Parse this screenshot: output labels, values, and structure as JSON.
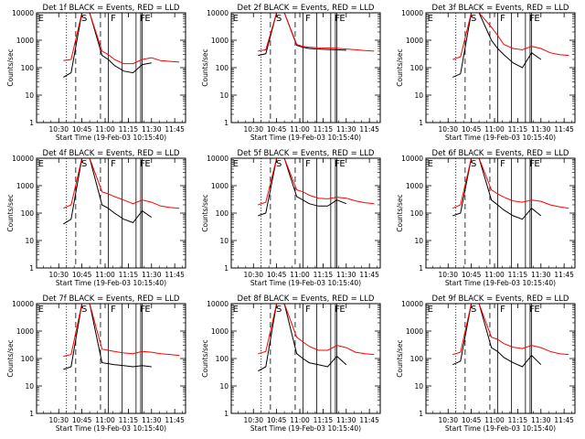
{
  "figure": {
    "series_colors": {
      "events": "#000000",
      "lld": "#ff0000"
    },
    "flag_labels": [
      "E",
      "S",
      "F",
      "F",
      "E"
    ]
  },
  "chart_data": [
    {
      "type": "line",
      "title": "Det 1f BLACK = Events, RED = LLD",
      "xlabel": "Start Time (19-Feb-03 10:15:40)",
      "ylabel": "Counts/sec",
      "x_ticks": [
        "10:30",
        "10:45",
        "11:00",
        "11:15",
        "11:30",
        "11:45"
      ],
      "y_ticks": [
        "1",
        "10",
        "100",
        "1000",
        "10000"
      ],
      "y_scale": "log",
      "ylim": [
        1,
        10000
      ],
      "xlim": [
        "10:15:40",
        "11:52:00"
      ],
      "x": [
        "10:33",
        "10:38",
        "10:45",
        "10:50",
        "10:58",
        "11:02",
        "11:06",
        "11:12",
        "11:18",
        "11:24",
        "11:30",
        "11:36",
        "11:42",
        "11:48"
      ],
      "series": [
        {
          "name": "Events",
          "values": [
            45,
            65,
            10000,
            10000,
            280,
            200,
            120,
            75,
            65,
            130,
            150,
            null,
            null,
            null
          ]
        },
        {
          "name": "LLD",
          "values": [
            180,
            200,
            10000,
            10000,
            400,
            300,
            200,
            140,
            140,
            200,
            230,
            180,
            170,
            160
          ]
        }
      ]
    },
    {
      "type": "line",
      "title": "Det 2f BLACK = Events, RED = LLD",
      "xlabel": "Start Time (19-Feb-03 10:15:40)",
      "ylabel": "Counts/sec",
      "x_ticks": [
        "10:30",
        "10:45",
        "11:00",
        "11:15",
        "11:30",
        "11:45"
      ],
      "y_ticks": [
        "1",
        "10",
        "100",
        "1000",
        "10000"
      ],
      "y_scale": "log",
      "ylim": [
        1,
        10000
      ],
      "xlim": [
        "10:15:40",
        "11:52:00"
      ],
      "x": [
        "10:33",
        "10:38",
        "10:45",
        "10:50",
        "10:58",
        "11:02",
        "11:06",
        "11:12",
        "11:18",
        "11:24",
        "11:30",
        "11:36",
        "11:42",
        "11:48"
      ],
      "series": [
        {
          "name": "Events",
          "values": [
            280,
            320,
            10000,
            10000,
            650,
            550,
            500,
            480,
            460,
            450,
            430,
            null,
            null,
            null
          ]
        },
        {
          "name": "LLD",
          "values": [
            400,
            450,
            10000,
            10000,
            700,
            600,
            560,
            530,
            520,
            510,
            480,
            450,
            420,
            400
          ]
        }
      ]
    },
    {
      "type": "line",
      "title": "Det 3f BLACK = Events, RED = LLD",
      "xlabel": "Start Time (19-Feb-03 10:15:40)",
      "ylabel": "Counts/sec",
      "x_ticks": [
        "10:30",
        "10:45",
        "11:00",
        "11:15",
        "11:30",
        "11:45"
      ],
      "y_ticks": [
        "1",
        "10",
        "100",
        "1000",
        "10000"
      ],
      "y_scale": "log",
      "ylim": [
        1,
        10000
      ],
      "xlim": [
        "10:15:40",
        "11:52:00"
      ],
      "x": [
        "10:33",
        "10:38",
        "10:45",
        "10:50",
        "10:58",
        "11:02",
        "11:06",
        "11:12",
        "11:18",
        "11:24",
        "11:30",
        "11:36",
        "11:42",
        "11:48"
      ],
      "series": [
        {
          "name": "Events",
          "values": [
            45,
            60,
            10000,
            10000,
            1000,
            500,
            300,
            150,
            100,
            350,
            200,
            null,
            null,
            null
          ]
        },
        {
          "name": "LLD",
          "values": [
            200,
            250,
            10000,
            10000,
            3000,
            1500,
            700,
            500,
            450,
            600,
            500,
            350,
            300,
            280
          ]
        }
      ]
    },
    {
      "type": "line",
      "title": "Det 4f BLACK = Events, RED = LLD",
      "xlabel": "Start Time (19-Feb-03 10:15:40)",
      "ylabel": "Counts/sec",
      "x_ticks": [
        "10:30",
        "10:45",
        "11:00",
        "11:15",
        "11:30",
        "11:45"
      ],
      "y_ticks": [
        "1",
        "10",
        "100",
        "1000",
        "10000"
      ],
      "y_scale": "log",
      "ylim": [
        1,
        10000
      ],
      "xlim": [
        "10:15:40",
        "11:52:00"
      ],
      "x": [
        "10:33",
        "10:38",
        "10:45",
        "10:50",
        "10:58",
        "11:02",
        "11:06",
        "11:12",
        "11:18",
        "11:24",
        "11:30",
        "11:36",
        "11:42",
        "11:48"
      ],
      "series": [
        {
          "name": "Events",
          "values": [
            40,
            60,
            10000,
            10000,
            200,
            150,
            100,
            60,
            45,
            120,
            70,
            null,
            null,
            null
          ]
        },
        {
          "name": "LLD",
          "values": [
            150,
            200,
            10000,
            10000,
            600,
            500,
            400,
            300,
            220,
            300,
            250,
            180,
            160,
            150
          ]
        }
      ]
    },
    {
      "type": "line",
      "title": "Det 5f BLACK = Events, RED = LLD",
      "xlabel": "Start Time (19-Feb-03 10:15:40)",
      "ylabel": "Counts/sec",
      "x_ticks": [
        "10:30",
        "10:45",
        "11:00",
        "11:15",
        "11:30",
        "11:45"
      ],
      "y_ticks": [
        "1",
        "10",
        "100",
        "1000",
        "10000"
      ],
      "y_scale": "log",
      "ylim": [
        1,
        10000
      ],
      "xlim": [
        "10:15:40",
        "11:52:00"
      ],
      "x": [
        "10:33",
        "10:38",
        "10:45",
        "10:50",
        "10:58",
        "11:02",
        "11:06",
        "11:12",
        "11:18",
        "11:24",
        "11:30",
        "11:36",
        "11:42",
        "11:48"
      ],
      "series": [
        {
          "name": "Events",
          "values": [
            80,
            100,
            10000,
            10000,
            400,
            300,
            220,
            180,
            180,
            300,
            220,
            null,
            null,
            null
          ]
        },
        {
          "name": "LLD",
          "values": [
            200,
            250,
            10000,
            10000,
            700,
            600,
            450,
            350,
            330,
            380,
            350,
            280,
            240,
            220
          ]
        }
      ]
    },
    {
      "type": "line",
      "title": "Det 6f BLACK = Events, RED = LLD",
      "xlabel": "Start Time (19-Feb-03 10:15:40)",
      "ylabel": "Counts/sec",
      "x_ticks": [
        "10:30",
        "10:45",
        "11:00",
        "11:15",
        "11:30",
        "11:45"
      ],
      "y_ticks": [
        "1",
        "10",
        "100",
        "1000",
        "10000"
      ],
      "y_scale": "log",
      "ylim": [
        1,
        10000
      ],
      "xlim": [
        "10:15:40",
        "11:52:00"
      ],
      "x": [
        "10:33",
        "10:38",
        "10:45",
        "10:50",
        "10:58",
        "11:02",
        "11:06",
        "11:12",
        "11:18",
        "11:24",
        "11:30",
        "11:36",
        "11:42",
        "11:48"
      ],
      "series": [
        {
          "name": "Events",
          "values": [
            80,
            100,
            10000,
            10000,
            300,
            200,
            130,
            80,
            60,
            150,
            80,
            null,
            null,
            null
          ]
        },
        {
          "name": "LLD",
          "values": [
            150,
            200,
            10000,
            10000,
            700,
            500,
            380,
            280,
            250,
            300,
            270,
            200,
            170,
            150
          ]
        }
      ]
    },
    {
      "type": "line",
      "title": "Det 7f BLACK = Events, RED = LLD",
      "xlabel": "Start Time (19-Feb-03 10:15:40)",
      "ylabel": "Counts/sec",
      "x_ticks": [
        "10:30",
        "10:45",
        "11:00",
        "11:15",
        "11:30",
        "11:45"
      ],
      "y_ticks": [
        "1",
        "10",
        "100",
        "1000",
        "10000"
      ],
      "y_scale": "log",
      "ylim": [
        1,
        10000
      ],
      "xlim": [
        "10:15:40",
        "11:52:00"
      ],
      "x": [
        "10:33",
        "10:38",
        "10:45",
        "10:50",
        "10:58",
        "11:02",
        "11:06",
        "11:12",
        "11:18",
        "11:24",
        "11:30",
        "11:36",
        "11:42",
        "11:48"
      ],
      "series": [
        {
          "name": "Events",
          "values": [
            40,
            50,
            10000,
            10000,
            70,
            65,
            60,
            55,
            50,
            55,
            50,
            null,
            null,
            null
          ]
        },
        {
          "name": "LLD",
          "values": [
            120,
            140,
            10000,
            10000,
            220,
            200,
            180,
            160,
            150,
            180,
            170,
            150,
            140,
            130
          ]
        }
      ]
    },
    {
      "type": "line",
      "title": "Det 8f BLACK = Events, RED = LLD",
      "xlabel": "Start Time (19-Feb-03 10:15:40)",
      "ylabel": "Counts/sec",
      "x_ticks": [
        "10:30",
        "10:45",
        "11:00",
        "11:15",
        "11:30",
        "11:45"
      ],
      "y_ticks": [
        "1",
        "10",
        "100",
        "1000",
        "10000"
      ],
      "y_scale": "log",
      "ylim": [
        1,
        10000
      ],
      "xlim": [
        "10:15:40",
        "11:52:00"
      ],
      "x": [
        "10:33",
        "10:38",
        "10:45",
        "10:50",
        "10:58",
        "11:02",
        "11:06",
        "11:12",
        "11:18",
        "11:24",
        "11:30",
        "11:36",
        "11:42",
        "11:48"
      ],
      "series": [
        {
          "name": "Events",
          "values": [
            35,
            50,
            10000,
            10000,
            150,
            100,
            70,
            60,
            50,
            120,
            60,
            null,
            null,
            null
          ]
        },
        {
          "name": "LLD",
          "values": [
            150,
            180,
            10000,
            10000,
            600,
            400,
            280,
            200,
            200,
            300,
            250,
            170,
            150,
            140
          ]
        }
      ]
    },
    {
      "type": "line",
      "title": "Det 9f BLACK = Events, RED = LLD",
      "xlabel": "Start Time (19-Feb-03 10:15:40)",
      "ylabel": "Counts/sec",
      "x_ticks": [
        "10:30",
        "10:45",
        "11:00",
        "11:15",
        "11:30",
        "11:45"
      ],
      "y_ticks": [
        "1",
        "10",
        "100",
        "1000",
        "10000"
      ],
      "y_scale": "log",
      "ylim": [
        1,
        10000
      ],
      "xlim": [
        "10:15:40",
        "11:52:00"
      ],
      "x": [
        "10:33",
        "10:38",
        "10:45",
        "10:50",
        "10:58",
        "11:02",
        "11:06",
        "11:12",
        "11:18",
        "11:24",
        "11:30",
        "11:36",
        "11:42",
        "11:48"
      ],
      "series": [
        {
          "name": "Events",
          "values": [
            60,
            80,
            10000,
            10000,
            250,
            180,
            110,
            70,
            50,
            130,
            60,
            null,
            null,
            null
          ]
        },
        {
          "name": "LLD",
          "values": [
            140,
            170,
            10000,
            10000,
            600,
            500,
            350,
            260,
            230,
            300,
            250,
            180,
            150,
            140
          ]
        }
      ]
    }
  ]
}
